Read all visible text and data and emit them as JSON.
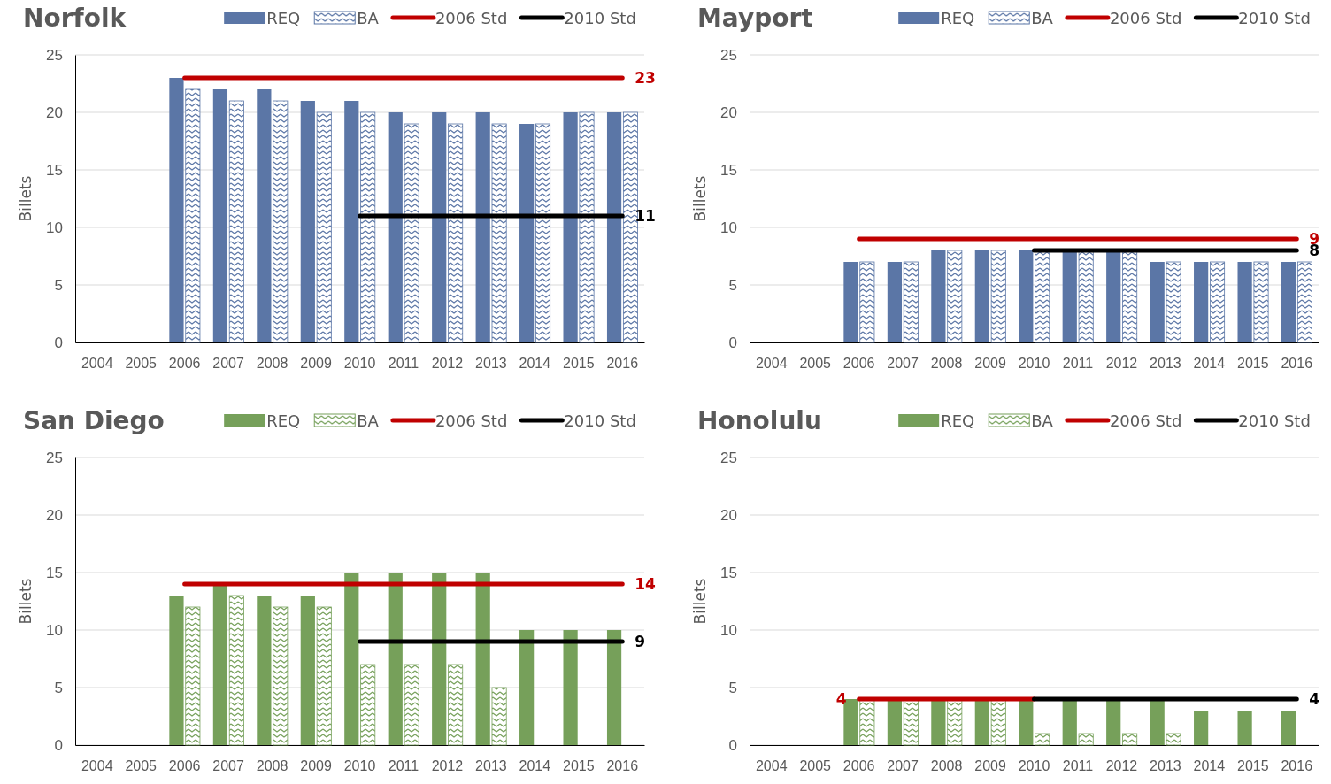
{
  "chart_data": [
    {
      "type": "bar",
      "title": "Norfolk",
      "ylabel": "Billets",
      "categories": [
        "2004",
        "2005",
        "2006",
        "2007",
        "2008",
        "2009",
        "2010",
        "2011",
        "2012",
        "2013",
        "2014",
        "2015",
        "2016"
      ],
      "ylim": [
        0,
        25
      ],
      "yticks": [
        0,
        5,
        10,
        15,
        20,
        25
      ],
      "grid": "y",
      "legend": "top",
      "series": [
        {
          "name": "REQ",
          "color": "#5b76a6",
          "values": [
            null,
            null,
            23,
            22,
            22,
            21,
            21,
            20,
            20,
            20,
            19,
            20,
            20
          ]
        },
        {
          "name": "BA",
          "color": "#5b76a6",
          "values": [
            null,
            null,
            22,
            21,
            21,
            20,
            20,
            19,
            19,
            19,
            19,
            20,
            20
          ]
        },
        {
          "name": "2006 Std",
          "type": "line",
          "color": "#c00000",
          "values": [
            null,
            null,
            23,
            23,
            23,
            23,
            23,
            23,
            23,
            23,
            23,
            23,
            23
          ],
          "value_labels": [
            null,
            null,
            null,
            null,
            null,
            null,
            null,
            null,
            null,
            null,
            null,
            null,
            "23"
          ]
        },
        {
          "name": "2010 Std",
          "type": "line",
          "color": "#000000",
          "values": [
            null,
            null,
            null,
            null,
            null,
            null,
            11,
            11,
            11,
            11,
            11,
            11,
            11
          ],
          "value_labels": [
            null,
            null,
            null,
            null,
            null,
            null,
            null,
            null,
            null,
            null,
            null,
            null,
            "11"
          ]
        }
      ]
    },
    {
      "type": "bar",
      "title": "Mayport",
      "ylabel": "Billets",
      "categories": [
        "2004",
        "2005",
        "2006",
        "2007",
        "2008",
        "2009",
        "2010",
        "2011",
        "2012",
        "2013",
        "2014",
        "2015",
        "2016"
      ],
      "ylim": [
        0,
        25
      ],
      "yticks": [
        0,
        5,
        10,
        15,
        20,
        25
      ],
      "grid": "y",
      "legend": "top",
      "series": [
        {
          "name": "REQ",
          "color": "#5b76a6",
          "values": [
            null,
            null,
            7,
            7,
            8,
            8,
            8,
            8,
            8,
            7,
            7,
            7,
            7
          ]
        },
        {
          "name": "BA",
          "color": "#5b76a6",
          "values": [
            null,
            null,
            7,
            7,
            8,
            8,
            8,
            8,
            8,
            7,
            7,
            7,
            7
          ]
        },
        {
          "name": "2006 Std",
          "type": "line",
          "color": "#c00000",
          "values": [
            null,
            null,
            9,
            9,
            9,
            9,
            9,
            9,
            9,
            9,
            9,
            9,
            9
          ],
          "value_labels": [
            null,
            null,
            null,
            null,
            null,
            null,
            null,
            null,
            null,
            null,
            null,
            null,
            "9"
          ]
        },
        {
          "name": "2010 Std",
          "type": "line",
          "color": "#000000",
          "values": [
            null,
            null,
            null,
            null,
            null,
            null,
            8,
            8,
            8,
            8,
            8,
            8,
            8
          ],
          "value_labels": [
            null,
            null,
            null,
            null,
            null,
            null,
            null,
            null,
            null,
            null,
            null,
            null,
            "8"
          ]
        }
      ]
    },
    {
      "type": "bar",
      "title": "San Diego",
      "ylabel": "Billets",
      "categories": [
        "2004",
        "2005",
        "2006",
        "2007",
        "2008",
        "2009",
        "2010",
        "2011",
        "2012",
        "2013",
        "2014",
        "2015",
        "2016"
      ],
      "ylim": [
        0,
        25
      ],
      "yticks": [
        0,
        5,
        10,
        15,
        20,
        25
      ],
      "grid": "y",
      "legend": "top",
      "series": [
        {
          "name": "REQ",
          "color": "#76a05a",
          "values": [
            null,
            null,
            13,
            14,
            13,
            13,
            15,
            15,
            15,
            15,
            10,
            10,
            10
          ]
        },
        {
          "name": "BA",
          "color": "#76a05a",
          "values": [
            null,
            null,
            12,
            13,
            12,
            12,
            7,
            7,
            7,
            5,
            null,
            null,
            null
          ]
        },
        {
          "name": "2006 Std",
          "type": "line",
          "color": "#c00000",
          "values": [
            null,
            null,
            14,
            14,
            14,
            14,
            14,
            14,
            14,
            14,
            14,
            14,
            14
          ],
          "value_labels": [
            null,
            null,
            null,
            null,
            null,
            null,
            null,
            null,
            null,
            null,
            null,
            null,
            "14"
          ]
        },
        {
          "name": "2010 Std",
          "type": "line",
          "color": "#000000",
          "values": [
            null,
            null,
            null,
            null,
            null,
            null,
            9,
            9,
            9,
            9,
            9,
            9,
            9
          ],
          "value_labels": [
            null,
            null,
            null,
            null,
            null,
            null,
            null,
            null,
            null,
            null,
            null,
            null,
            "9"
          ]
        }
      ]
    },
    {
      "type": "bar",
      "title": "Honolulu",
      "ylabel": "Billets",
      "categories": [
        "2004",
        "2005",
        "2006",
        "2007",
        "2008",
        "2009",
        "2010",
        "2011",
        "2012",
        "2013",
        "2014",
        "2015",
        "2016"
      ],
      "ylim": [
        0,
        25
      ],
      "yticks": [
        0,
        5,
        10,
        15,
        20,
        25
      ],
      "grid": "y",
      "legend": "top",
      "series": [
        {
          "name": "REQ",
          "color": "#76a05a",
          "values": [
            null,
            null,
            4,
            4,
            4,
            4,
            4,
            4,
            4,
            4,
            3,
            3,
            3
          ]
        },
        {
          "name": "BA",
          "color": "#76a05a",
          "values": [
            null,
            null,
            4,
            4,
            4,
            4,
            1,
            1,
            1,
            1,
            null,
            null,
            null
          ]
        },
        {
          "name": "2006 Std",
          "type": "line",
          "color": "#c00000",
          "values": [
            null,
            null,
            4,
            4,
            4,
            4,
            4,
            null,
            null,
            null,
            null,
            null,
            null
          ],
          "value_labels": [
            null,
            null,
            "4",
            null,
            null,
            null,
            null,
            null,
            null,
            null,
            null,
            null,
            null
          ]
        },
        {
          "name": "2010 Std",
          "type": "line",
          "color": "#000000",
          "values": [
            null,
            null,
            null,
            null,
            null,
            null,
            4,
            4,
            4,
            4,
            4,
            4,
            4
          ],
          "value_labels": [
            null,
            null,
            null,
            null,
            null,
            null,
            null,
            null,
            null,
            null,
            null,
            null,
            "4"
          ]
        }
      ]
    }
  ]
}
